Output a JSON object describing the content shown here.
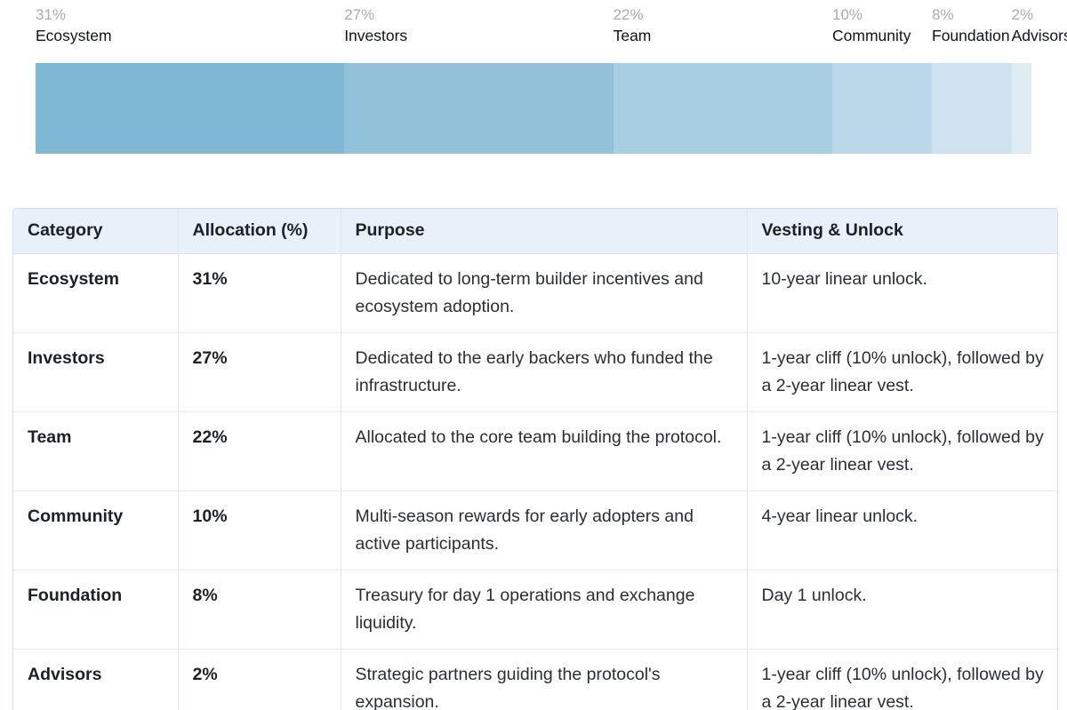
{
  "chart_data": {
    "type": "bar",
    "orientation": "horizontal",
    "stacked": true,
    "unit": "%",
    "total": 100,
    "categories": [
      "Ecosystem",
      "Investors",
      "Team",
      "Community",
      "Foundation",
      "Advisors"
    ],
    "values": [
      31,
      27,
      22,
      10,
      8,
      2
    ],
    "segments": [
      {
        "name": "Ecosystem",
        "value": 31,
        "pct_label": "31%",
        "color": "#7fb8d5"
      },
      {
        "name": "Investors",
        "value": 27,
        "pct_label": "27%",
        "color": "#92c2da"
      },
      {
        "name": "Team",
        "value": 22,
        "pct_label": "22%",
        "color": "#a7cee2"
      },
      {
        "name": "Community",
        "value": 10,
        "pct_label": "10%",
        "color": "#b9d8e9"
      },
      {
        "name": "Foundation",
        "value": 8,
        "pct_label": "8%",
        "color": "#cfe2ef"
      },
      {
        "name": "Advisors",
        "value": 2,
        "pct_label": "2%",
        "color": "#dfecf4"
      }
    ],
    "label_pct_color": "#a6abb0",
    "label_name_color": "#101418",
    "legend_position": "above-bar",
    "grid": false
  },
  "table": {
    "headers": [
      "Category",
      "Allocation (%)",
      "Purpose",
      "Vesting & Unlock"
    ],
    "header_bg": "#e8f1f9",
    "rows": [
      [
        "Ecosystem",
        "31%",
        "Dedicated to long-term builder incentives and ecosystem adoption.",
        "10-year linear unlock."
      ],
      [
        "Investors",
        "27%",
        "Dedicated to the early backers who funded the infrastructure.",
        "1-year cliff (10% unlock), followed by a 2-year linear vest."
      ],
      [
        "Team",
        "22%",
        "Allocated to the core team building the protocol.",
        "1-year cliff (10% unlock), followed by a 2-year linear vest."
      ],
      [
        "Community",
        "10%",
        "Multi-season rewards for early adopters and active participants.",
        "4-year linear unlock."
      ],
      [
        "Foundation",
        "8%",
        "Treasury for day 1 operations and exchange liquidity.",
        "Day 1 unlock."
      ],
      [
        "Advisors",
        "2%",
        "Strategic partners guiding the protocol's expansion.",
        "1-year cliff (10% unlock), followed by a 2-year linear vest."
      ]
    ]
  }
}
